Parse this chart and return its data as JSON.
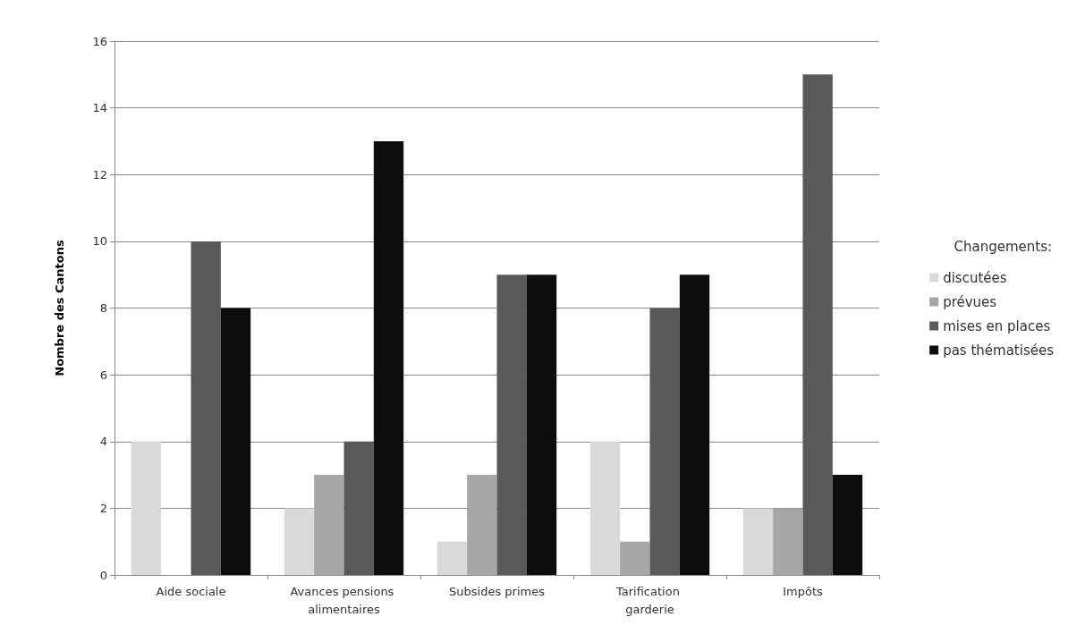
{
  "chart_data": {
    "type": "bar",
    "ylabel": "Nombre des Cantons",
    "legend_title": "Changements:",
    "categories": [
      "Aide sociale",
      "Avances pensions alimentaires",
      "Subsides primes",
      "Tarification garderie",
      "Impôts"
    ],
    "series": [
      {
        "name": "discutées",
        "color": "#d9d9d9",
        "values": [
          4,
          2,
          1,
          4,
          2
        ]
      },
      {
        "name": "prévues",
        "color": "#a6a6a6",
        "values": [
          0,
          3,
          3,
          1,
          2
        ]
      },
      {
        "name": "mises en places",
        "color": "#595959",
        "values": [
          10,
          4,
          9,
          8,
          15
        ]
      },
      {
        "name": "pas thématisées",
        "color": "#0d0d0d",
        "values": [
          8,
          13,
          9,
          9,
          3
        ]
      }
    ],
    "ylim": [
      0,
      16
    ],
    "yticks": [
      0,
      2,
      4,
      6,
      8,
      10,
      12,
      14,
      16
    ],
    "grid": "y",
    "legend": "right"
  }
}
